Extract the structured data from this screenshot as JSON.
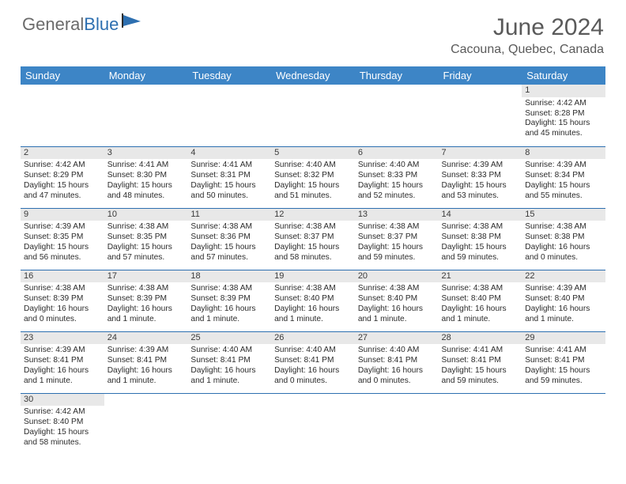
{
  "logo": {
    "text_gray": "General",
    "text_blue": "Blue"
  },
  "title": "June 2024",
  "location": "Cacouna, Quebec, Canada",
  "colors": {
    "header_bg": "#3d85c6",
    "header_text": "#ffffff",
    "daynum_bg": "#e8e8e8",
    "border": "#2d6fb0",
    "text": "#2b2b2b"
  },
  "day_headers": [
    "Sunday",
    "Monday",
    "Tuesday",
    "Wednesday",
    "Thursday",
    "Friday",
    "Saturday"
  ],
  "weeks": [
    [
      null,
      null,
      null,
      null,
      null,
      null,
      {
        "n": "1",
        "sr": "4:42 AM",
        "ss": "8:28 PM",
        "dl": "15 hours and 45 minutes."
      }
    ],
    [
      {
        "n": "2",
        "sr": "4:42 AM",
        "ss": "8:29 PM",
        "dl": "15 hours and 47 minutes."
      },
      {
        "n": "3",
        "sr": "4:41 AM",
        "ss": "8:30 PM",
        "dl": "15 hours and 48 minutes."
      },
      {
        "n": "4",
        "sr": "4:41 AM",
        "ss": "8:31 PM",
        "dl": "15 hours and 50 minutes."
      },
      {
        "n": "5",
        "sr": "4:40 AM",
        "ss": "8:32 PM",
        "dl": "15 hours and 51 minutes."
      },
      {
        "n": "6",
        "sr": "4:40 AM",
        "ss": "8:33 PM",
        "dl": "15 hours and 52 minutes."
      },
      {
        "n": "7",
        "sr": "4:39 AM",
        "ss": "8:33 PM",
        "dl": "15 hours and 53 minutes."
      },
      {
        "n": "8",
        "sr": "4:39 AM",
        "ss": "8:34 PM",
        "dl": "15 hours and 55 minutes."
      }
    ],
    [
      {
        "n": "9",
        "sr": "4:39 AM",
        "ss": "8:35 PM",
        "dl": "15 hours and 56 minutes."
      },
      {
        "n": "10",
        "sr": "4:38 AM",
        "ss": "8:35 PM",
        "dl": "15 hours and 57 minutes."
      },
      {
        "n": "11",
        "sr": "4:38 AM",
        "ss": "8:36 PM",
        "dl": "15 hours and 57 minutes."
      },
      {
        "n": "12",
        "sr": "4:38 AM",
        "ss": "8:37 PM",
        "dl": "15 hours and 58 minutes."
      },
      {
        "n": "13",
        "sr": "4:38 AM",
        "ss": "8:37 PM",
        "dl": "15 hours and 59 minutes."
      },
      {
        "n": "14",
        "sr": "4:38 AM",
        "ss": "8:38 PM",
        "dl": "15 hours and 59 minutes."
      },
      {
        "n": "15",
        "sr": "4:38 AM",
        "ss": "8:38 PM",
        "dl": "16 hours and 0 minutes."
      }
    ],
    [
      {
        "n": "16",
        "sr": "4:38 AM",
        "ss": "8:39 PM",
        "dl": "16 hours and 0 minutes."
      },
      {
        "n": "17",
        "sr": "4:38 AM",
        "ss": "8:39 PM",
        "dl": "16 hours and 1 minute."
      },
      {
        "n": "18",
        "sr": "4:38 AM",
        "ss": "8:39 PM",
        "dl": "16 hours and 1 minute."
      },
      {
        "n": "19",
        "sr": "4:38 AM",
        "ss": "8:40 PM",
        "dl": "16 hours and 1 minute."
      },
      {
        "n": "20",
        "sr": "4:38 AM",
        "ss": "8:40 PM",
        "dl": "16 hours and 1 minute."
      },
      {
        "n": "21",
        "sr": "4:38 AM",
        "ss": "8:40 PM",
        "dl": "16 hours and 1 minute."
      },
      {
        "n": "22",
        "sr": "4:39 AM",
        "ss": "8:40 PM",
        "dl": "16 hours and 1 minute."
      }
    ],
    [
      {
        "n": "23",
        "sr": "4:39 AM",
        "ss": "8:41 PM",
        "dl": "16 hours and 1 minute."
      },
      {
        "n": "24",
        "sr": "4:39 AM",
        "ss": "8:41 PM",
        "dl": "16 hours and 1 minute."
      },
      {
        "n": "25",
        "sr": "4:40 AM",
        "ss": "8:41 PM",
        "dl": "16 hours and 1 minute."
      },
      {
        "n": "26",
        "sr": "4:40 AM",
        "ss": "8:41 PM",
        "dl": "16 hours and 0 minutes."
      },
      {
        "n": "27",
        "sr": "4:40 AM",
        "ss": "8:41 PM",
        "dl": "16 hours and 0 minutes."
      },
      {
        "n": "28",
        "sr": "4:41 AM",
        "ss": "8:41 PM",
        "dl": "15 hours and 59 minutes."
      },
      {
        "n": "29",
        "sr": "4:41 AM",
        "ss": "8:41 PM",
        "dl": "15 hours and 59 minutes."
      }
    ],
    [
      {
        "n": "30",
        "sr": "4:42 AM",
        "ss": "8:40 PM",
        "dl": "15 hours and 58 minutes."
      },
      null,
      null,
      null,
      null,
      null,
      null
    ]
  ],
  "labels": {
    "sunrise": "Sunrise: ",
    "sunset": "Sunset: ",
    "daylight": "Daylight: "
  }
}
